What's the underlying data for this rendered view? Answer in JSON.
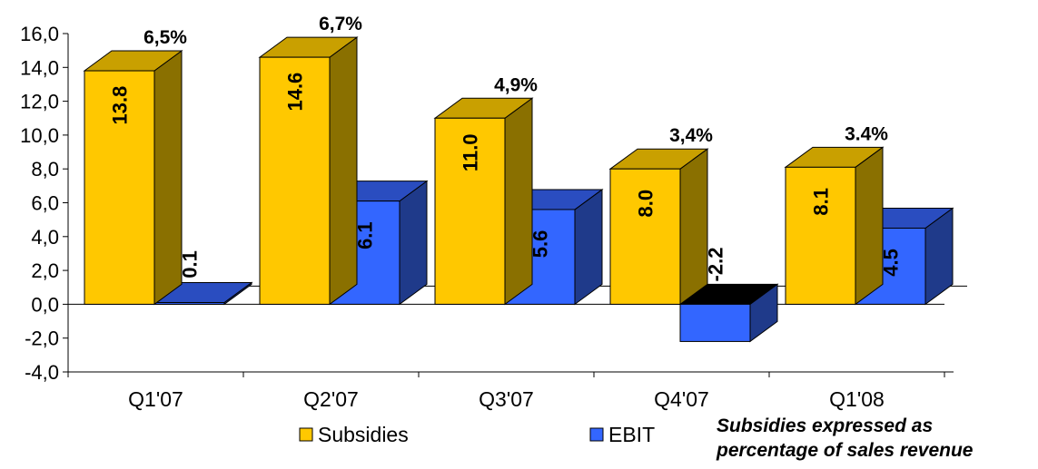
{
  "chart_data": {
    "type": "bar",
    "categories": [
      "Q1'07",
      "Q2'07",
      "Q3'07",
      "Q4'07",
      "Q1'08"
    ],
    "series": [
      {
        "name": "Subsidies",
        "values": [
          13.8,
          14.6,
          11.0,
          8.0,
          8.1
        ],
        "labels": [
          "13.8",
          "14.6",
          "11.0",
          "8.0",
          "8.1"
        ]
      },
      {
        "name": "EBIT",
        "values": [
          0.1,
          6.1,
          5.6,
          -2.2,
          4.5
        ],
        "labels": [
          "0.1",
          "6.1",
          "5.6",
          "-2.2",
          "4.5"
        ]
      }
    ],
    "percent_labels": [
      "6,5%",
      "6,7%",
      "4,9%",
      "3,4%",
      "3.4%"
    ],
    "ylim": [
      -4.0,
      16.0
    ],
    "yticks": [
      "-4,0",
      "-2,0",
      "0,0",
      "2,0",
      "4,0",
      "6,0",
      "8,0",
      "10,0",
      "12,0",
      "14,0",
      "16,0"
    ],
    "colors": {
      "subsidies_front": "#FFC800",
      "subsidies_top": "#C9A000",
      "subsidies_side": "#8A7000",
      "ebit_front": "#3366FF",
      "ebit_top": "#2A4DC0",
      "ebit_side": "#1F3A8A"
    },
    "note": [
      "Subsidies expressed as",
      "percentage of sales revenue"
    ],
    "legend_position": "bottom"
  }
}
